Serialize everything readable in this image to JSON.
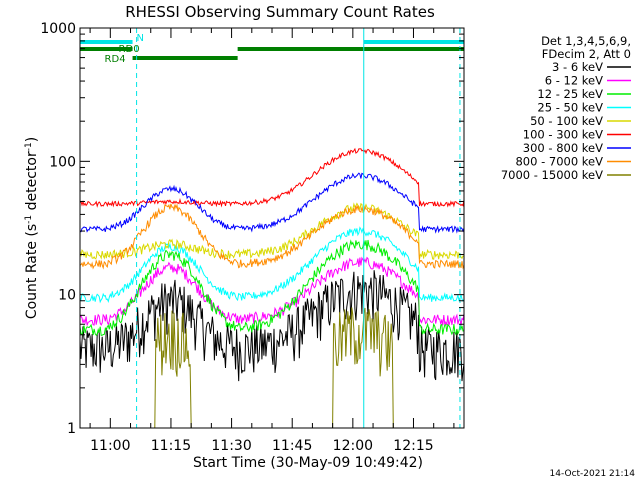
{
  "chart_data": {
    "type": "line",
    "title": "RHESSI Observing Summary Count Rates",
    "xlabel": "Start Time (30-May-09 10:49:42)",
    "ylabel_main": "Count Rate (s",
    "ylabel_sup1": "-1",
    "ylabel_mid": " detector",
    "ylabel_sup2": "-1",
    "ylabel_end": ")",
    "yscale": "log",
    "ylim": [
      1,
      1000
    ],
    "xlim_minutes": [
      -7.5,
      87.5
    ],
    "x_tick_labels": [
      "11:00",
      "11:15",
      "11:30",
      "11:45",
      "12:00",
      "12:15"
    ],
    "x_tick_minutes": [
      0,
      15,
      30,
      45,
      60,
      75
    ],
    "y_tick_labels": [
      "1",
      "10",
      "100",
      "1000"
    ],
    "y_tick_values": [
      1,
      10,
      100,
      1000
    ],
    "night_intervals_minutes": [
      [
        -7.5,
        0
      ],
      [
        76.5,
        87.5
      ]
    ],
    "vertical_lines": [
      {
        "minutes": -7.5,
        "style": "solid",
        "color": "#00e5e5"
      },
      {
        "minutes": 6.5,
        "style": "dashed",
        "color": "#00e5e5"
      },
      {
        "minutes": 62.7,
        "style": "solid",
        "color": "#00e5e5"
      },
      {
        "minutes": 86.5,
        "style": "dashed",
        "color": "#00e5e5"
      }
    ],
    "segments": [
      {
        "label": "N",
        "color": "#00e5e5",
        "start": -7.5,
        "end": 5.5,
        "level": 0
      },
      {
        "label": "",
        "color": "#00e5e5",
        "start": 62.7,
        "end": 87.5,
        "level": 0
      },
      {
        "label": "RD0",
        "color": "#007f00",
        "start": -7.5,
        "end": 5.5,
        "level": 1
      },
      {
        "label": "",
        "color": "#007f00",
        "start": 31.5,
        "end": 87.5,
        "level": 1
      },
      {
        "label": "RD4",
        "color": "#007f00",
        "start": 5.5,
        "end": 31.5,
        "level": 2
      }
    ],
    "legend_header": [
      "Det 1,3,4,5,6,9,",
      "FDecim 2, Att 0"
    ],
    "series": [
      {
        "name": "3 - 6 keV",
        "color": "#000000",
        "base": 4.0,
        "peak1": 9.0,
        "peak2": 11.0,
        "noise": 0.45
      },
      {
        "name": "6 - 12 keV",
        "color": "#ff00ff",
        "base": 6.5,
        "peak1": 16.0,
        "peak2": 17.5,
        "noise": 0.1
      },
      {
        "name": "12 - 25 keV",
        "color": "#00ee00",
        "base": 5.5,
        "peak1": 20.0,
        "peak2": 24.0,
        "noise": 0.1
      },
      {
        "name": "25 - 50 keV",
        "color": "#00ffff",
        "base": 9.5,
        "peak1": 23.0,
        "peak2": 30.0,
        "noise": 0.07
      },
      {
        "name": "50 - 100 keV",
        "color": "#d9d900",
        "base": 20.0,
        "peak1": 24.0,
        "peak2": 45.0,
        "noise": 0.08
      },
      {
        "name": "100 - 300 keV",
        "color": "#ff0000",
        "base": 48.0,
        "peak1": 50.0,
        "peak2": 120.0,
        "noise": 0.04
      },
      {
        "name": "300 - 800 keV",
        "color": "#0000ff",
        "base": 31.0,
        "peak1": 62.0,
        "peak2": 78.0,
        "noise": 0.05
      },
      {
        "name": "800 - 7000 keV",
        "color": "#ff8c00",
        "base": 17.0,
        "peak1": 45.0,
        "peak2": 44.0,
        "noise": 0.07
      },
      {
        "name": "7000 - 15000 keV",
        "color": "#808000",
        "base": 1.0,
        "peak1": 4.8,
        "peak2": 5.0,
        "noise": 0.3
      }
    ],
    "grid": false,
    "legend_position": "right"
  },
  "footer": {
    "timestamp": "14-Oct-2021 21:14"
  }
}
